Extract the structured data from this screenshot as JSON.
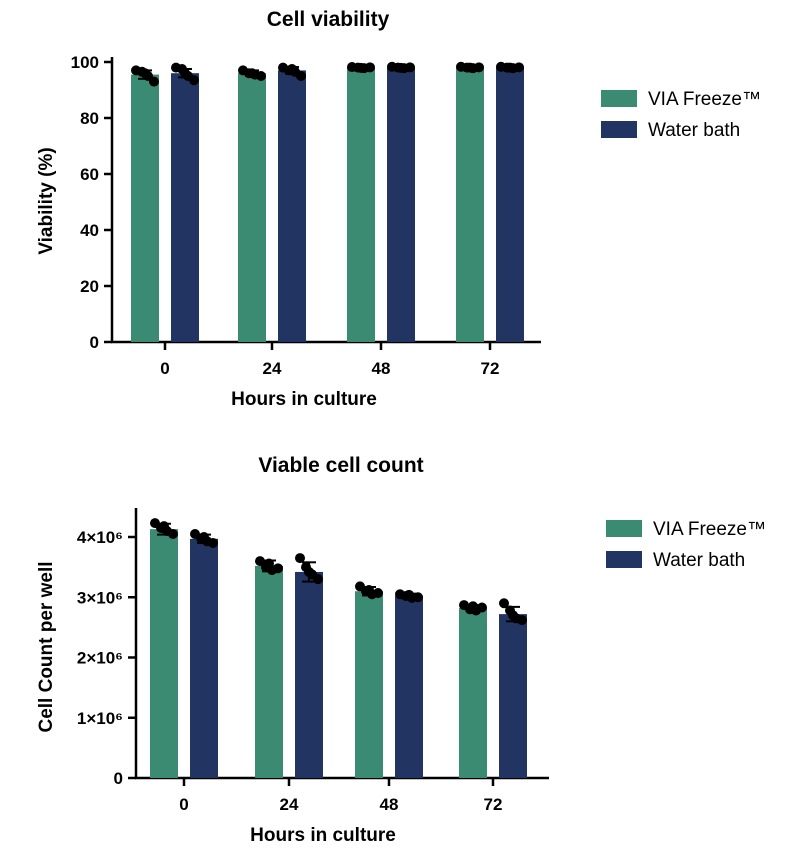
{
  "colors": {
    "via_freeze": "#3b8a72",
    "water_bath": "#223462",
    "points": "#000000"
  },
  "chart_data": [
    {
      "type": "bar",
      "title": "Cell viability",
      "xlabel": "Hours in culture",
      "ylabel": "Viability (%)",
      "categories": [
        "0",
        "24",
        "48",
        "72"
      ],
      "ylim": [
        0,
        100
      ],
      "yticks": [
        0,
        20,
        40,
        60,
        80,
        100
      ],
      "ytick_labels": [
        "0",
        "20",
        "40",
        "60",
        "80",
        "100"
      ],
      "legend_position": "right",
      "series": [
        {
          "name": "VIA Freeze™",
          "color_key": "via_freeze",
          "values": [
            95.5,
            96,
            98,
            98
          ],
          "errors": [
            1.5,
            1.0,
            0.3,
            0.3
          ],
          "points": [
            [
              97,
              96.5,
              95,
              93,
              96
            ],
            [
              97,
              96,
              95.5,
              95,
              96
            ],
            [
              98.2,
              98,
              97.8,
              98.1,
              97.9
            ],
            [
              98.3,
              98,
              97.8,
              98.1,
              98
            ]
          ]
        },
        {
          "name": "Water bath",
          "color_key": "water_bath",
          "values": [
            96,
            97,
            98,
            98
          ],
          "errors": [
            1.5,
            1.2,
            0.3,
            0.3
          ],
          "points": [
            [
              98,
              97.5,
              95,
              93.5,
              96
            ],
            [
              98,
              97,
              96.5,
              95,
              97.5
            ],
            [
              98.3,
              98,
              97.8,
              98.1,
              97.9
            ],
            [
              98.3,
              98,
              97.8,
              98.1,
              98
            ]
          ]
        }
      ]
    },
    {
      "type": "bar",
      "title": "Viable cell count",
      "xlabel": "Hours in culture",
      "ylabel": "Cell Count per well",
      "categories": [
        "0",
        "24",
        "48",
        "72"
      ],
      "ylim": [
        0,
        4500000
      ],
      "yticks": [
        0,
        1000000,
        2000000,
        3000000,
        4000000
      ],
      "ytick_labels": [
        "0",
        "1×10⁶",
        "2×10⁶",
        "3×10⁶",
        "4×10⁶"
      ],
      "legend_position": "right",
      "series": [
        {
          "name": "VIA Freeze™",
          "color_key": "via_freeze",
          "values": [
            4130000,
            3520000,
            3100000,
            2820000
          ],
          "errors": [
            90000,
            90000,
            70000,
            50000
          ],
          "points": [
            [
              4230000,
              4150000,
              4100000,
              4050000,
              4180000
            ],
            [
              3600000,
              3500000,
              3450000,
              3480000,
              3560000
            ],
            [
              3180000,
              3100000,
              3050000,
              3070000,
              3120000
            ],
            [
              2870000,
              2800000,
              2780000,
              2830000,
              2850000
            ]
          ]
        },
        {
          "name": "Water bath",
          "color_key": "water_bath",
          "values": [
            3970000,
            3420000,
            3020000,
            2720000
          ],
          "errors": [
            70000,
            160000,
            40000,
            120000
          ],
          "points": [
            [
              4050000,
              3980000,
              3930000,
              3900000,
              4000000
            ],
            [
              3650000,
              3500000,
              3380000,
              3300000,
              3420000
            ],
            [
              3050000,
              3020000,
              2990000,
              3000000,
              3040000
            ],
            [
              2900000,
              2780000,
              2650000,
              2620000,
              2700000
            ]
          ]
        }
      ]
    }
  ]
}
